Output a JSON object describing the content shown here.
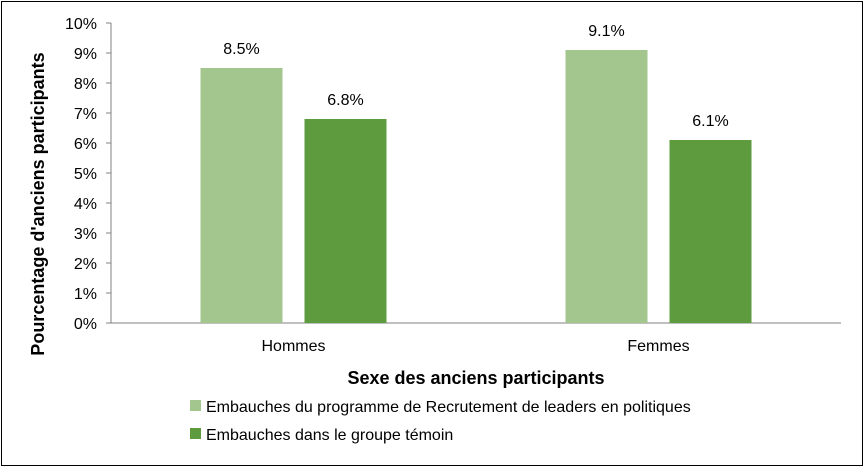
{
  "chart_data": {
    "type": "bar",
    "categories": [
      "Hommes",
      "Femmes"
    ],
    "series": [
      {
        "name": "Embauches du programme de Recrutement de leaders en politiques",
        "values": [
          8.5,
          9.1
        ],
        "labels": [
          "8.5%",
          "9.1%"
        ],
        "color": "#a3c68f"
      },
      {
        "name": "Embauches dans le groupe témoin",
        "values": [
          6.8,
          6.1
        ],
        "labels": [
          "6.8%",
          "6.1%"
        ],
        "color": "#5e9a3e"
      }
    ],
    "title": "",
    "xlabel": "Sexe des anciens participants",
    "ylabel": "Pourcentage d'anciens participants",
    "ylim": [
      0,
      10
    ],
    "yticks": [
      "0%",
      "1%",
      "2%",
      "3%",
      "4%",
      "5%",
      "6%",
      "7%",
      "8%",
      "9%",
      "10%"
    ],
    "grid": false,
    "legend_position": "bottom-center"
  }
}
